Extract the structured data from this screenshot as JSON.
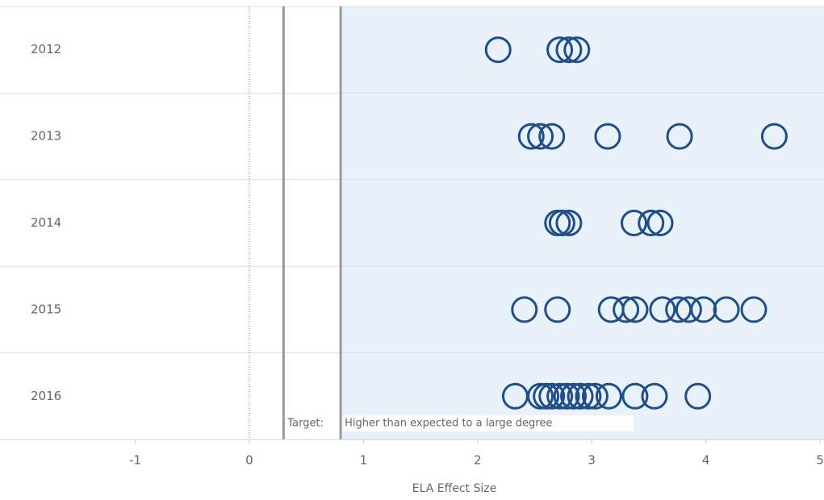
{
  "chart_data": {
    "type": "strip",
    "xlabel": "ELA Effect Size",
    "categories": [
      "2012",
      "2013",
      "2014",
      "2015",
      "2016"
    ],
    "values": [
      [
        2.18,
        2.72,
        2.8,
        2.87
      ],
      [
        2.47,
        2.55,
        2.65,
        3.14,
        3.77,
        4.6
      ],
      [
        2.7,
        2.74,
        2.8,
        3.37,
        3.52,
        3.6
      ],
      [
        2.41,
        2.7,
        3.17,
        3.3,
        3.38,
        3.62,
        3.76,
        3.85,
        3.98,
        4.18,
        4.42
      ],
      [
        2.33,
        2.55,
        2.6,
        2.65,
        2.72,
        2.78,
        2.84,
        2.9,
        2.97,
        3.03,
        3.15,
        3.38,
        3.55,
        3.93
      ]
    ],
    "color": "#1f4e89",
    "xlim": [
      -2.1,
      5
    ],
    "xticks": [
      -1,
      0,
      1,
      2,
      3,
      4,
      5
    ],
    "zero_line": 0,
    "reference_lines": [
      {
        "value": 0.3,
        "label": "Target:"
      },
      {
        "value": 0.8,
        "label": "Higher than expected to a large degree"
      }
    ]
  }
}
